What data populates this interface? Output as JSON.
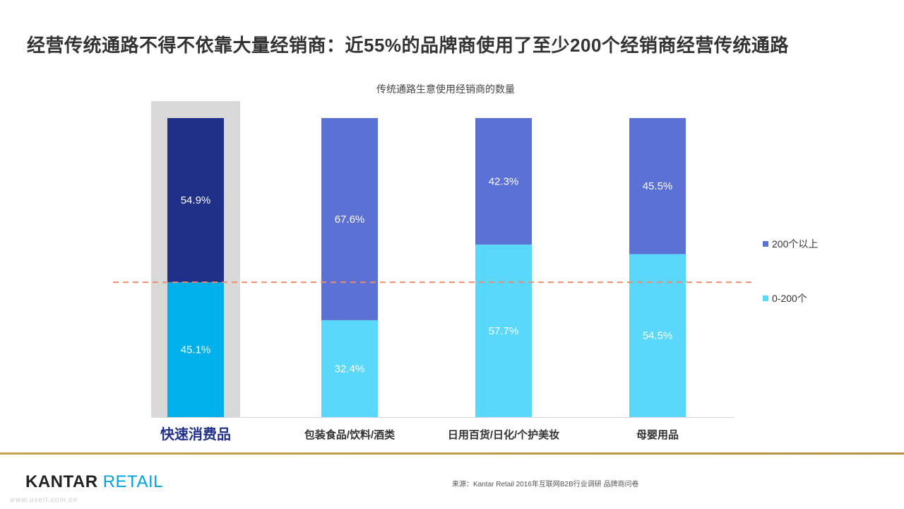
{
  "page": {
    "title": "经营传统通路不得不依靠大量经销商：近55%的品牌商使用了至少200个经销商经营传统通路",
    "logo_kantar": "KANTAR",
    "logo_retail": "RETAIL",
    "source": "来源：Kantar Retail 2016年互联网B2B行业调研 品牌商问卷",
    "watermark": "www.useit.com.cn"
  },
  "chart_data": {
    "type": "bar",
    "stacked": true,
    "percent": true,
    "title": "传统通路生意使用经销商的数量",
    "categories": [
      "快速消费品",
      "包装食品/饮料/酒类",
      "日用百货/日化/个护美妆",
      "母婴用品"
    ],
    "series": [
      {
        "name": "0-200个",
        "values": [
          45.1,
          32.4,
          57.7,
          54.5
        ],
        "color": "#5ad8fc",
        "highlight_color": "#00b0ea"
      },
      {
        "name": "200个以上",
        "values": [
          54.9,
          67.6,
          42.3,
          45.5
        ],
        "color": "#5b71d6",
        "highlight_color": "#203088"
      }
    ],
    "value_labels": [
      [
        "45.1%",
        "32.4%",
        "57.7%",
        "54.5%"
      ],
      [
        "54.9%",
        "67.6%",
        "42.3%",
        "45.5%"
      ]
    ],
    "highlight_category": 0,
    "reference_line": {
      "value": 45.1,
      "style": "dashed",
      "color": "#f08a68"
    },
    "ylim": [
      0,
      100
    ],
    "legend_position": "right",
    "grid": false,
    "colors": {
      "highlight_band": "#d9d9d9",
      "highlight_label": "#203088",
      "category_label": "#333333",
      "value_label": "#ffffff",
      "axis": "#d9d9d9"
    }
  }
}
